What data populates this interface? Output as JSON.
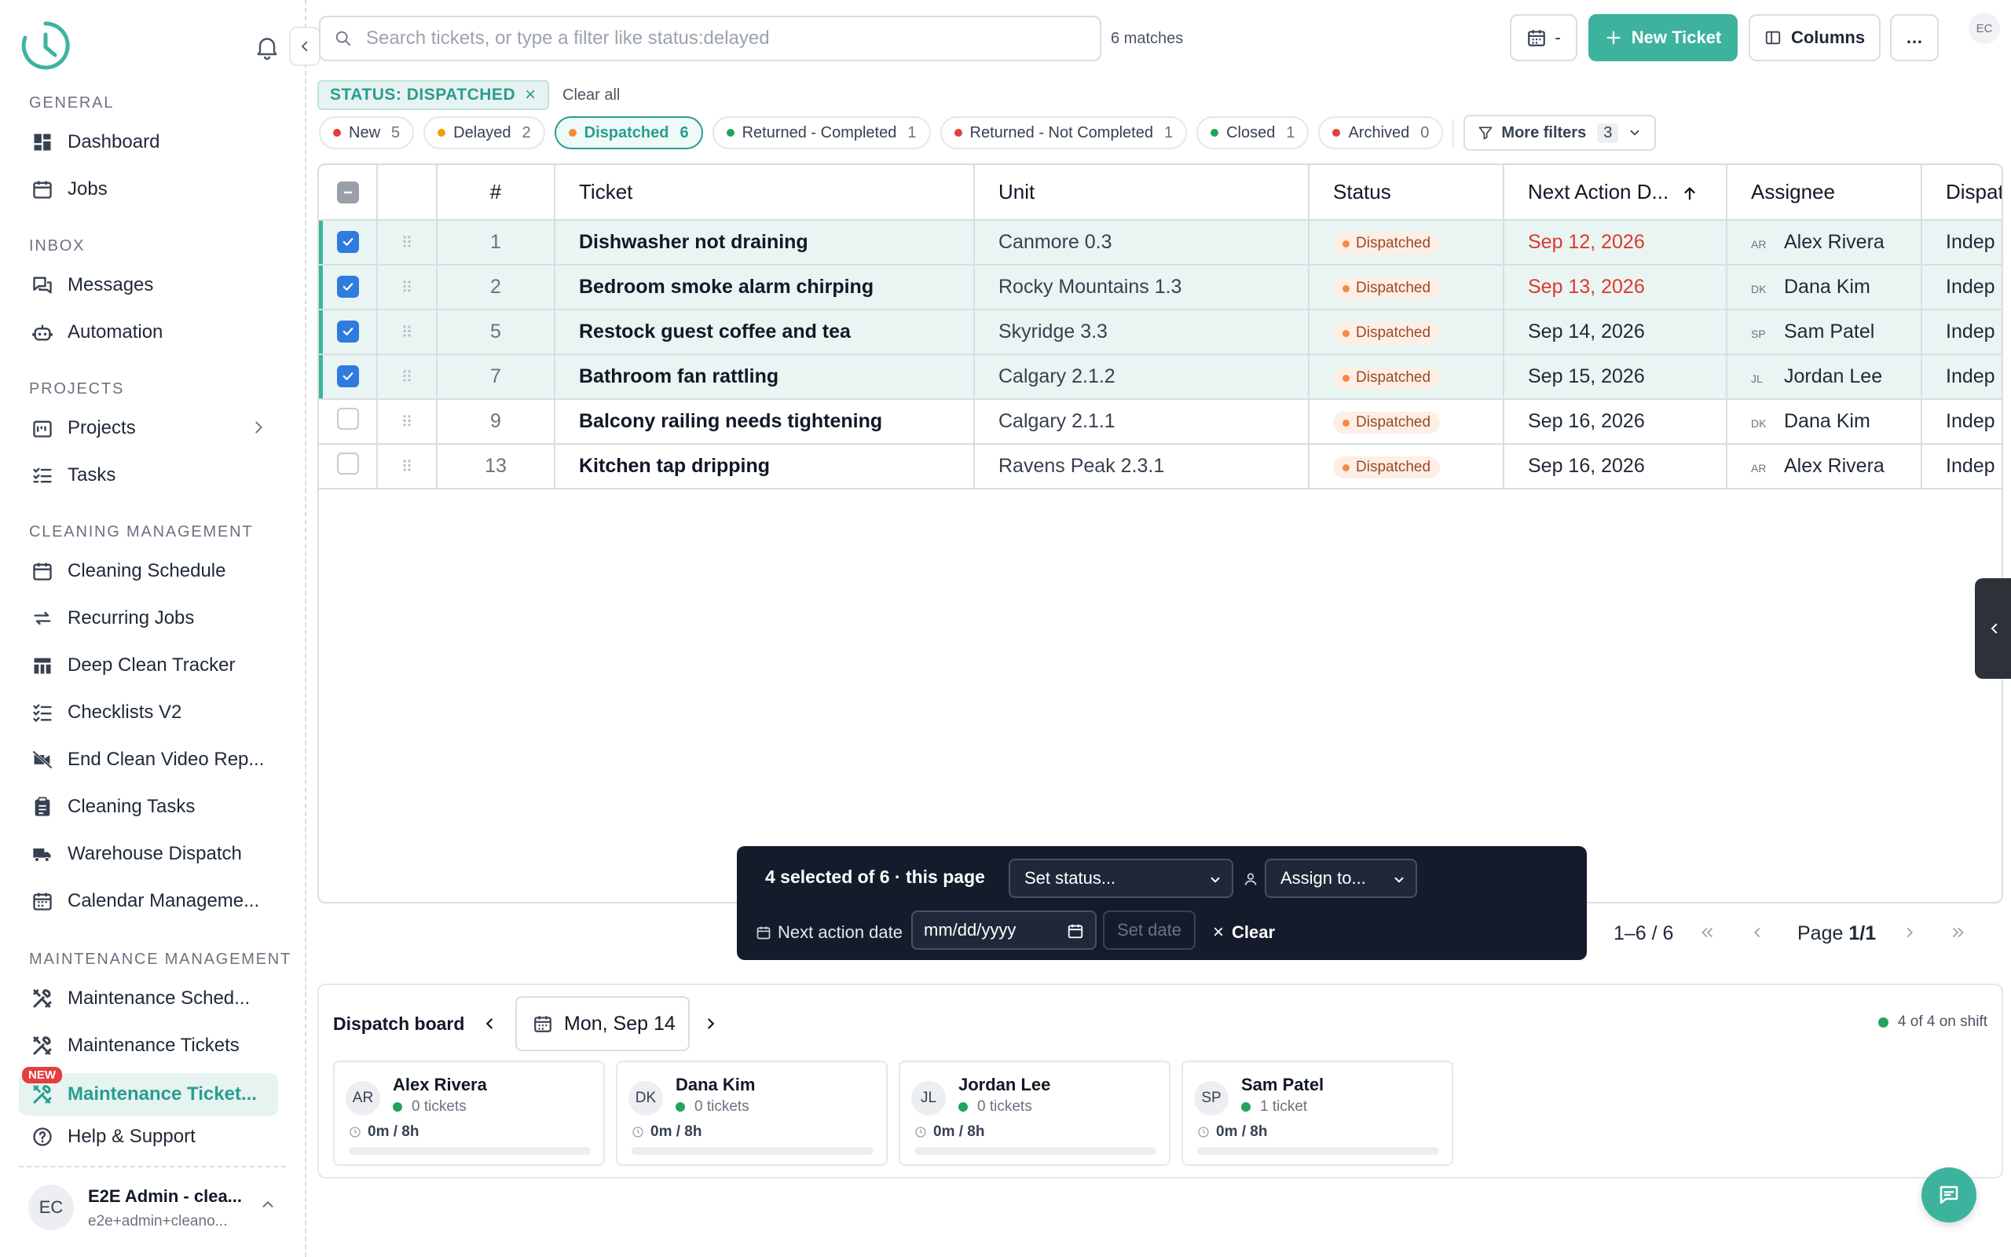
{
  "sidebar": {
    "sections": [
      {
        "title": "GENERAL",
        "items": [
          {
            "label": "Dashboard",
            "icon": "dashboard-icon"
          },
          {
            "label": "Jobs",
            "icon": "calendar-icon"
          }
        ]
      },
      {
        "title": "INBOX",
        "items": [
          {
            "label": "Messages",
            "icon": "messages-icon"
          },
          {
            "label": "Automation",
            "icon": "robot-icon"
          }
        ]
      },
      {
        "title": "PROJECTS",
        "items": [
          {
            "label": "Projects",
            "icon": "projects-icon"
          },
          {
            "label": "Tasks",
            "icon": "tasks-icon"
          }
        ]
      },
      {
        "title": "CLEANING MANAGEMENT",
        "items": [
          {
            "label": "Cleaning Schedule",
            "icon": "calendar-icon"
          },
          {
            "label": "Recurring Jobs",
            "icon": "repeat-icon"
          },
          {
            "label": "Deep Clean Tracker",
            "icon": "table-icon"
          },
          {
            "label": "Checklists V2",
            "icon": "checklist-icon"
          },
          {
            "label": "End Clean Video Rep...",
            "icon": "video-off-icon"
          },
          {
            "label": "Cleaning Tasks",
            "icon": "clipboard-icon"
          },
          {
            "label": "Warehouse Dispatch",
            "icon": "truck-icon"
          },
          {
            "label": "Calendar Manageme...",
            "icon": "calendar-grid-icon"
          }
        ]
      },
      {
        "title": "MAINTENANCE MANAGEMENT",
        "items": [
          {
            "label": "Maintenance Sched...",
            "icon": "tools-icon"
          },
          {
            "label": "Maintenance Tickets",
            "icon": "tools-icon"
          },
          {
            "label": "Maintenance Ticket...",
            "icon": "tools-icon",
            "badge": "NEW",
            "active": true
          }
        ]
      }
    ],
    "help_label": "Help & Support",
    "user": {
      "initials": "EC",
      "name": "E2E Admin - clea...",
      "email": "e2e+admin+cleano..."
    }
  },
  "topbar": {
    "search_placeholder": "Search tickets, or type a filter like status:delayed",
    "matches": "6 matches",
    "date_button": "-",
    "new_ticket": "New Ticket",
    "columns": "Columns",
    "more": "…",
    "corner_initials": "EC"
  },
  "filters": {
    "active": "STATUS: DISPATCHED",
    "clear_all": "Clear all",
    "chips": [
      {
        "label": "New",
        "count": "5",
        "color": "#e53e3e"
      },
      {
        "label": "Delayed",
        "count": "2",
        "color": "#f59e0b"
      },
      {
        "label": "Dispatched",
        "count": "6",
        "color": "#f58a42",
        "selected": true
      },
      {
        "label": "Returned - Completed",
        "count": "1",
        "color": "#22a35a"
      },
      {
        "label": "Returned - Not Completed",
        "count": "1",
        "color": "#e53e3e"
      },
      {
        "label": "Closed",
        "count": "1",
        "color": "#22a35a"
      },
      {
        "label": "Archived",
        "count": "0",
        "color": "#e53e3e"
      }
    ],
    "more_filters": "More filters",
    "more_filters_count": "3"
  },
  "table": {
    "headers": {
      "num": "#",
      "ticket": "Ticket",
      "unit": "Unit",
      "status": "Status",
      "next_action": "Next Action D...",
      "assignee": "Assignee",
      "dispatch": "Dispat"
    },
    "rows": [
      {
        "num": "1",
        "ticket": "Dishwasher not draining",
        "unit": "Canmore 0.3",
        "status": "Dispatched",
        "date": "Sep 12, 2026",
        "overdue": true,
        "initials": "AR",
        "assignee": "Alex Rivera",
        "dispatch": "Indep",
        "selected": true
      },
      {
        "num": "2",
        "ticket": "Bedroom smoke alarm chirping",
        "unit": "Rocky Mountains 1.3",
        "status": "Dispatched",
        "date": "Sep 13, 2026",
        "overdue": true,
        "initials": "DK",
        "assignee": "Dana Kim",
        "dispatch": "Indep",
        "selected": true
      },
      {
        "num": "5",
        "ticket": "Restock guest coffee and tea",
        "unit": "Skyridge 3.3",
        "status": "Dispatched",
        "date": "Sep 14, 2026",
        "overdue": false,
        "initials": "SP",
        "assignee": "Sam Patel",
        "dispatch": "Indep",
        "selected": true
      },
      {
        "num": "7",
        "ticket": "Bathroom fan rattling",
        "unit": "Calgary 2.1.2",
        "status": "Dispatched",
        "date": "Sep 15, 2026",
        "overdue": false,
        "initials": "JL",
        "assignee": "Jordan Lee",
        "dispatch": "Indep",
        "selected": true
      },
      {
        "num": "9",
        "ticket": "Balcony railing needs tightening",
        "unit": "Calgary 2.1.1",
        "status": "Dispatched",
        "date": "Sep 16, 2026",
        "overdue": false,
        "initials": "DK",
        "assignee": "Dana Kim",
        "dispatch": "Indep",
        "selected": false
      },
      {
        "num": "13",
        "ticket": "Kitchen tap dripping",
        "unit": "Ravens Peak 2.3.1",
        "status": "Dispatched",
        "date": "Sep 16, 2026",
        "overdue": false,
        "initials": "AR",
        "assignee": "Alex Rivera",
        "dispatch": "Indep",
        "selected": false
      }
    ]
  },
  "bulk": {
    "count": "4 selected of 6 · this page",
    "set_status": "Set status...",
    "assign_to": "Assign to...",
    "next_action_label": "Next action date",
    "date_placeholder": "mm/dd/yyyy",
    "set_date": "Set date",
    "clear": "Clear"
  },
  "pagination": {
    "range": "1–6 / 6",
    "page_prefix": "Page ",
    "page_value": "1/1"
  },
  "dispatch": {
    "title": "Dispatch board",
    "date": "Mon, Sep 14",
    "on_shift": "4 of 4 on shift",
    "cards": [
      {
        "initials": "AR",
        "name": "Alex Rivera",
        "tickets": "0 tickets",
        "hours": "0m / 8h",
        "load": 0
      },
      {
        "initials": "DK",
        "name": "Dana Kim",
        "tickets": "0 tickets",
        "hours": "0m / 8h",
        "load": 0
      },
      {
        "initials": "JL",
        "name": "Jordan Lee",
        "tickets": "0 tickets",
        "hours": "0m / 8h",
        "load": 0
      },
      {
        "initials": "SP",
        "name": "Sam Patel",
        "tickets": "1 ticket",
        "hours": "0m / 8h",
        "load": 0
      }
    ]
  },
  "colors": {
    "accent": "#3db39e",
    "checkbox": "#2f7be0",
    "overdue": "#e0372e",
    "sidebar_bg": "#ffffff"
  }
}
